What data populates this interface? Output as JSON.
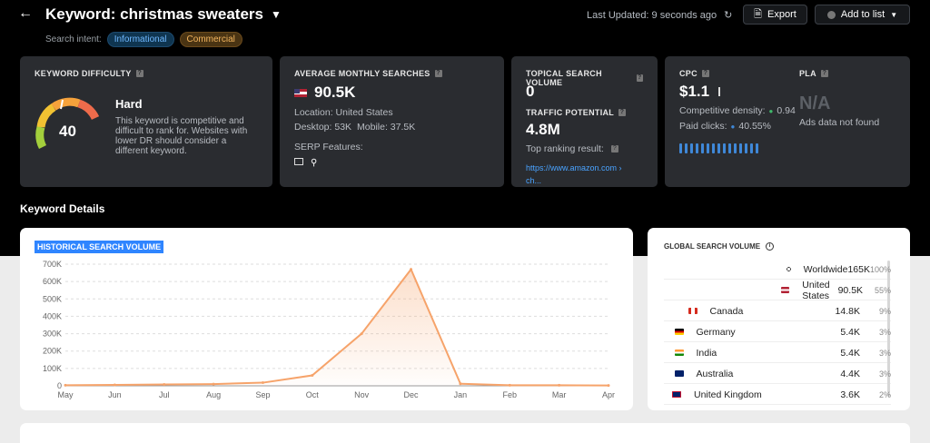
{
  "header": {
    "back_icon": "arrow-left-icon",
    "keyword_title": "Keyword: christmas sweaters",
    "caret_icon": "caret-down-icon",
    "search_intent_label": "Search intent:",
    "intents": [
      "Informational",
      "Commercial"
    ],
    "last_updated": "Last Updated: 9 seconds ago",
    "export_label": "Export",
    "add_to_list_label": "Add to list"
  },
  "cards": {
    "kd": {
      "title": "KEYWORD DIFFICULTY",
      "value": "40",
      "level": "Hard",
      "description": "This keyword is competitive and difficult to rank for. Websites with lower DR should consider a different keyword."
    },
    "ams": {
      "title": "AVERAGE MONTHLY SEARCHES",
      "value": "90.5K",
      "location": "Location: United States",
      "desktop": "Desktop: 53K",
      "mobile": "Mobile: 37.5K",
      "serp_label": "SERP Features:"
    },
    "tsv": {
      "title": "TOPICAL SEARCH VOLUME",
      "value": "0",
      "traffic_title": "TRAFFIC POTENTIAL",
      "traffic_value": "4.8M",
      "top_ranking": "Top ranking result:",
      "top_url_line1": "https://www.amazon.com ›",
      "top_url_line2": "ch..."
    },
    "cpc": {
      "title": "CPC",
      "value": "$1.1",
      "comp_density_label": "Competitive density:",
      "comp_density_value": "0.94",
      "paid_clicks_label": "Paid clicks:",
      "paid_clicks_value": "40.55%",
      "pla_title": "PLA",
      "pla_value": "N/A",
      "pla_note": "Ads data not found"
    }
  },
  "section_title": "Keyword Details",
  "historical": {
    "title": "HISTORICAL SEARCH VOLUME"
  },
  "chart_data": {
    "type": "area",
    "title": "HISTORICAL SEARCH VOLUME",
    "categories": [
      "May",
      "Jun",
      "Jul",
      "Aug",
      "Sep",
      "Oct",
      "Nov",
      "Dec",
      "Jan",
      "Feb",
      "Mar",
      "Apr"
    ],
    "values": [
      3000,
      5000,
      8000,
      10000,
      18000,
      60000,
      300000,
      670000,
      12000,
      3000,
      3000,
      2000
    ],
    "yticks": [
      "0",
      "100K",
      "200K",
      "300K",
      "400K",
      "500K",
      "600K",
      "700K"
    ],
    "ylim": [
      0,
      700000
    ],
    "color": "#f6a36a"
  },
  "global": {
    "title": "GLOBAL SEARCH VOLUME",
    "rows": [
      {
        "name": "Worldwide",
        "value": "165K",
        "pct": "100%",
        "fill": 1.0
      },
      {
        "name": "United States",
        "value": "90.5K",
        "pct": "55%",
        "fill": 0.55
      },
      {
        "name": "Canada",
        "value": "14.8K",
        "pct": "9%",
        "fill": 0.09
      },
      {
        "name": "Germany",
        "value": "5.4K",
        "pct": "3%",
        "fill": 0.03
      },
      {
        "name": "India",
        "value": "5.4K",
        "pct": "3%",
        "fill": 0.03
      },
      {
        "name": "Australia",
        "value": "4.4K",
        "pct": "3%",
        "fill": 0.03
      },
      {
        "name": "United Kingdom",
        "value": "3.6K",
        "pct": "2%",
        "fill": 0.02
      }
    ]
  }
}
